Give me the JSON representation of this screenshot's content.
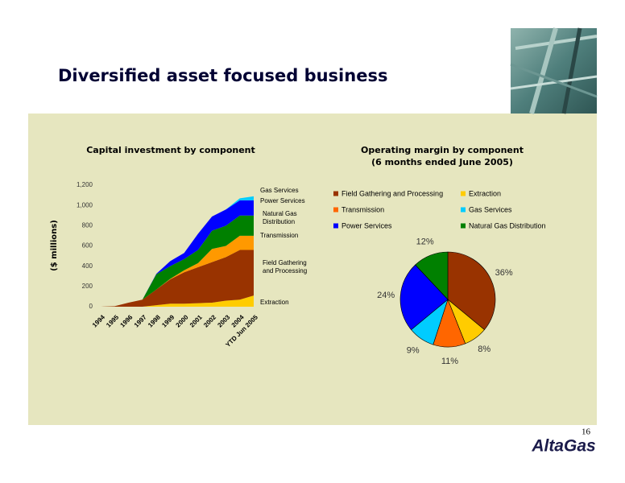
{
  "title": "Diversified asset focused business",
  "page_number": "16",
  "logo": "AltaGas",
  "chart_data": [
    {
      "type": "stacked-area",
      "title": "Capital investment by component",
      "y_label": "($ millions)",
      "categories": [
        "1994",
        "1995",
        "1996",
        "1997",
        "1998",
        "1999",
        "2000",
        "2001",
        "2002",
        "2003",
        "2004",
        "YTD Jun 2005"
      ],
      "ylim": [
        0,
        1200
      ],
      "yticks": [
        0,
        200,
        400,
        600,
        800,
        {
          "value": 1000,
          "label": "1,000"
        },
        {
          "value": 1200,
          "label": "1,200"
        }
      ],
      "series": [
        {
          "name": "Extraction",
          "color": "#ffcc00",
          "values": [
            0,
            0,
            0,
            0,
            15,
            30,
            30,
            35,
            40,
            60,
            70,
            110
          ]
        },
        {
          "name": "Field Gathering and Processing",
          "color": "#993300",
          "values": [
            0,
            5,
            40,
            70,
            155,
            240,
            310,
            355,
            400,
            430,
            490,
            450
          ]
        },
        {
          "name": "Transmission",
          "color": "#ff9900",
          "values": [
            0,
            0,
            0,
            0,
            0,
            5,
            20,
            40,
            130,
            110,
            140,
            140
          ]
        },
        {
          "name": "Natural Gas Distribution",
          "color": "#008000",
          "values": [
            0,
            0,
            0,
            0,
            150,
            125,
            110,
            130,
            180,
            200,
            200,
            200
          ]
        },
        {
          "name": "Power Services",
          "color": "#0000ff",
          "values": [
            0,
            0,
            0,
            0,
            5,
            50,
            60,
            160,
            140,
            160,
            150,
            150
          ]
        },
        {
          "name": "Gas Services",
          "color": "#00ccff",
          "values": [
            0,
            0,
            0,
            0,
            0,
            0,
            0,
            0,
            0,
            0,
            20,
            40
          ]
        }
      ]
    },
    {
      "type": "pie",
      "title": "Operating margin by component",
      "subtitle": "(6 months ended June 2005)",
      "categories": [
        "Field Gathering and Processing",
        "Extraction",
        "Transmission",
        "Gas Services",
        "Power Services",
        "Natural Gas Distribution"
      ],
      "values": [
        36,
        8,
        11,
        9,
        24,
        12
      ],
      "value_labels": [
        "36%",
        "8%",
        "11%",
        "9%",
        "24%",
        "12%"
      ],
      "colors": [
        "#993300",
        "#ffcc00",
        "#ff6600",
        "#00ccff",
        "#0000ff",
        "#008000"
      ]
    }
  ]
}
